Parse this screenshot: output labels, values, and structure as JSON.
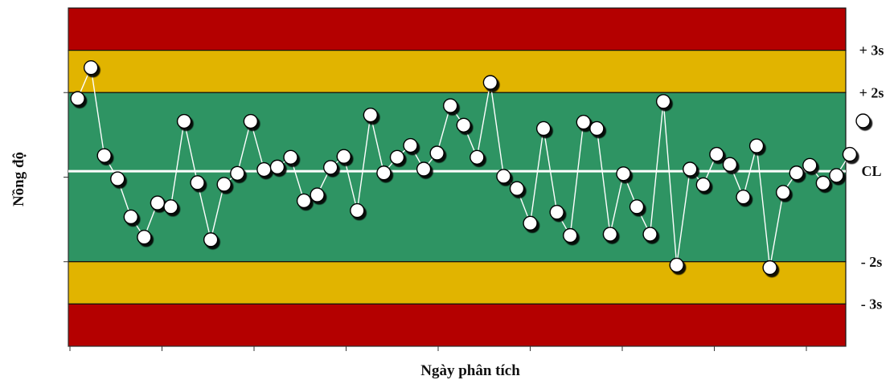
{
  "chart_data": {
    "type": "line",
    "title": "",
    "xlabel": "Ngày phân tích",
    "ylabel": "Nồng độ",
    "ylim": [
      -4,
      4
    ],
    "xlim": [
      -0.7,
      57.7
    ],
    "grid": false,
    "x_tick_count": 9,
    "y_ticks": [
      -2,
      0,
      2
    ],
    "center_line": 0.14,
    "zones": [
      {
        "name": "red",
        "from": 3,
        "to": 4,
        "color": "#B40000"
      },
      {
        "name": "yellow",
        "from": 2,
        "to": 3,
        "color": "#E1B400"
      },
      {
        "name": "green",
        "from": -2,
        "to": 2,
        "color": "#2E9463"
      },
      {
        "name": "yellow",
        "from": -3,
        "to": -2,
        "color": "#E1B400"
      },
      {
        "name": "red",
        "from": -4,
        "to": -3,
        "color": "#B40000"
      }
    ],
    "zone_labels": [
      {
        "label": "+ 3s",
        "y": 3
      },
      {
        "label": "+ 2s",
        "y": 2
      },
      {
        "label": "CL",
        "y": 0.14
      },
      {
        "label": "- 2s",
        "y": -2
      },
      {
        "label": "- 3s",
        "y": -3
      }
    ],
    "series": [
      {
        "values": [
          1.86,
          2.59,
          0.51,
          -0.04,
          -0.94,
          -1.42,
          -0.61,
          -0.7,
          1.32,
          -0.13,
          -1.48,
          -0.17,
          0.09,
          1.32,
          0.18,
          0.24,
          0.47,
          -0.56,
          -0.42,
          0.23,
          0.49,
          -0.79,
          1.47,
          0.1,
          0.47,
          0.75,
          0.19,
          0.57,
          1.69,
          1.23,
          0.47,
          2.24,
          0.02,
          -0.27,
          -1.09,
          1.15,
          -0.83,
          -1.38,
          1.3,
          1.15,
          -1.35,
          0.08,
          -0.7,
          -1.35,
          1.79,
          -2.08,
          0.19,
          -0.18,
          0.54,
          0.3,
          -0.47,
          0.74,
          -2.14,
          -0.36,
          0.1,
          0.28,
          -0.14,
          0.04,
          0.54,
          1.33
        ]
      }
    ]
  }
}
